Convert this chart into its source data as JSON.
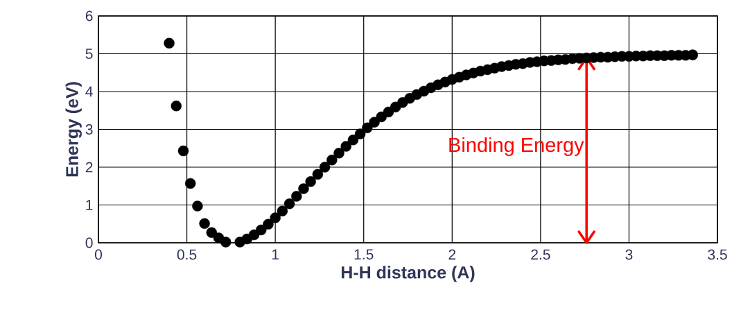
{
  "chart_data": {
    "type": "scatter",
    "xlabel": "H-H distance (A)",
    "ylabel": "Energy (eV)",
    "series": [
      {
        "color": "#000000",
        "x": [
          0.4,
          0.44,
          0.48,
          0.52,
          0.56,
          0.6,
          0.64,
          0.68,
          0.72,
          0.8,
          0.84,
          0.88,
          0.92,
          0.96,
          1.0,
          1.04,
          1.08,
          1.12,
          1.16,
          1.2,
          1.24,
          1.28,
          1.32,
          1.36,
          1.4,
          1.44,
          1.48,
          1.52,
          1.56,
          1.6,
          1.64,
          1.68,
          1.72,
          1.76,
          1.8,
          1.84,
          1.88,
          1.92,
          1.96,
          2.0,
          2.04,
          2.08,
          2.12,
          2.16,
          2.2,
          2.24,
          2.28,
          2.32,
          2.36,
          2.4,
          2.44,
          2.48,
          2.52,
          2.56,
          2.6,
          2.64,
          2.68,
          2.72,
          2.76,
          2.8,
          2.84,
          2.88,
          2.92,
          2.96,
          3.0,
          3.04,
          3.08,
          3.12,
          3.16,
          3.2,
          3.24,
          3.28,
          3.32,
          3.36
        ],
        "values": [
          5.28,
          3.62,
          2.43,
          1.57,
          0.97,
          0.51,
          0.27,
          0.13,
          0.02,
          0.02,
          0.1,
          0.21,
          0.34,
          0.49,
          0.66,
          0.84,
          1.03,
          1.23,
          1.43,
          1.62,
          1.81,
          2.0,
          2.19,
          2.37,
          2.55,
          2.72,
          2.88,
          3.04,
          3.19,
          3.33,
          3.46,
          3.59,
          3.71,
          3.82,
          3.92,
          4.01,
          4.1,
          4.18,
          4.25,
          4.32,
          4.38,
          4.44,
          4.49,
          4.54,
          4.58,
          4.62,
          4.66,
          4.69,
          4.72,
          4.74,
          4.77,
          4.79,
          4.81,
          4.82,
          4.84,
          4.85,
          4.87,
          4.88,
          4.89,
          4.9,
          4.91,
          4.91,
          4.92,
          4.93,
          4.93,
          4.94,
          4.94,
          4.95,
          4.95,
          4.95,
          4.96,
          4.96,
          4.96,
          4.97
        ]
      }
    ],
    "xlim": [
      0,
      3.5
    ],
    "ylim": [
      0,
      6
    ],
    "xticks": [
      0,
      0.5,
      1,
      1.5,
      2,
      2.5,
      3,
      3.5
    ],
    "yticks": [
      0,
      1,
      2,
      3,
      4,
      5,
      6
    ],
    "grid": true,
    "ref_lines": [
      {
        "axis": "x",
        "value": 2.76,
        "label": "Binding Energy",
        "color": "#ff0000"
      }
    ]
  }
}
